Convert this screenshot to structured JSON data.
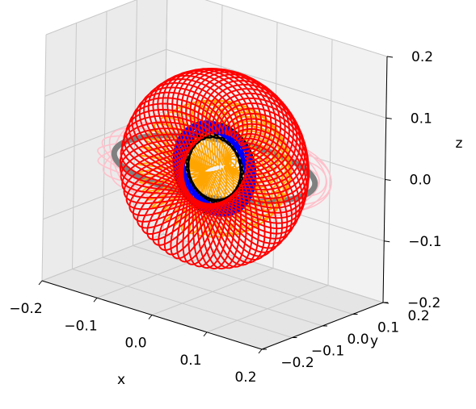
{
  "chart_data": {
    "type": "line3d",
    "xlabel": "x",
    "ylabel": "y",
    "zlabel": "z",
    "xlim": [
      -0.2,
      0.2
    ],
    "ylim": [
      -0.2,
      0.2
    ],
    "zlim": [
      -0.2,
      0.2
    ],
    "x_ticks": [
      "−0.2",
      "−0.1",
      "0.0",
      "0.1",
      "0.2"
    ],
    "y_ticks": [
      "−0.2",
      "−0.1",
      "0.0",
      "0.1",
      "0.2"
    ],
    "z_ticks": [
      "−0.2",
      "−0.1",
      "0.0",
      "0.1",
      "0.2"
    ],
    "grid": true,
    "colors": {
      "pane_back": "#f2f2f2",
      "pane_side": "#ebebeb",
      "pane_floor": "#e5e5e5",
      "grid": "#c8c8c8"
    },
    "series": [
      {
        "color": "#ffc0cb",
        "kind": "ring_bundle",
        "radius": 0.175,
        "tilt_deg": 4,
        "tube": 0.012,
        "loops": 6,
        "stroke": 1.6
      },
      {
        "color": "#808080",
        "kind": "ring",
        "radius": 0.16,
        "tilt_deg": 0,
        "stroke": 7
      },
      {
        "color": "#ffa500",
        "kind": "ring_bundle",
        "radius": 0.075,
        "tilt_deg": 35,
        "tube": 0.05,
        "loops": 14,
        "stroke": 1.8
      },
      {
        "color": "#000000",
        "kind": "ring_bundle",
        "radius": 0.06,
        "tilt_deg": 75,
        "tube": 0.012,
        "loops": 10,
        "stroke": 2.2
      },
      {
        "color": "#0000ff",
        "kind": "ring_bundle",
        "radius": 0.065,
        "tilt_deg": 85,
        "tube": 0.008,
        "loops": 10,
        "stroke": 2.6
      },
      {
        "color": "#ff0000",
        "kind": "ring_bundle",
        "radius": 0.11,
        "tilt_deg": 60,
        "tube": 0.05,
        "loops": 22,
        "stroke": 1.9
      }
    ]
  }
}
